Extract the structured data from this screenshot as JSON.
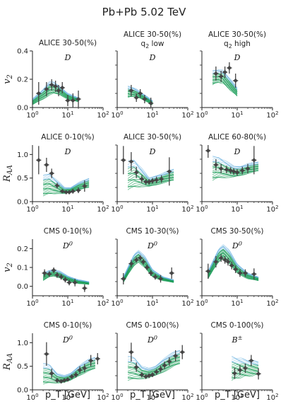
{
  "figure": {
    "title": "Pb+Pb 5.02 TeV",
    "xlabel": "p_T [GeV]",
    "row_ylabels": [
      "v_2",
      "R_AA",
      "v_2",
      "R_AA"
    ],
    "colors": {
      "data": "#444444",
      "model_green": "#1f9e5a",
      "model_blue": "#5aa9dc",
      "band_light": "#bfe3cf"
    }
  },
  "chart_data": [
    {
      "type": "line",
      "panel": [
        0,
        0
      ],
      "title": "ALICE 30-50(%)",
      "subtitle": "",
      "label": "D",
      "ylabel": "v_2",
      "xlog": true,
      "xlim": [
        1,
        100
      ],
      "ylim": [
        0,
        0.4
      ],
      "yticks": [
        0.0,
        0.2,
        0.4
      ],
      "model_band": {
        "x": [
          1,
          2,
          3,
          4,
          6,
          10,
          20
        ],
        "low": [
          0.02,
          0.06,
          0.09,
          0.1,
          0.09,
          0.06,
          0.04
        ],
        "high": [
          0.06,
          0.13,
          0.18,
          0.18,
          0.15,
          0.1,
          0.07
        ]
      },
      "data": [
        {
          "x": 1.5,
          "y": 0.1,
          "ey": 0.08
        },
        {
          "x": 2.5,
          "y": 0.13,
          "ey": 0.05
        },
        {
          "x": 3.5,
          "y": 0.16,
          "ey": 0.04
        },
        {
          "x": 4.5,
          "y": 0.15,
          "ey": 0.04
        },
        {
          "x": 5.5,
          "y": 0.12,
          "ey": 0.04
        },
        {
          "x": 7,
          "y": 0.14,
          "ey": 0.04
        },
        {
          "x": 10,
          "y": 0.05,
          "ey": 0.04
        },
        {
          "x": 14,
          "y": 0.05,
          "ey": 0.05
        },
        {
          "x": 20,
          "y": 0.06,
          "ey": 0.06
        }
      ]
    },
    {
      "type": "line",
      "panel": [
        0,
        1
      ],
      "title": "ALICE 30-50(%)",
      "subtitle": "q_2 low",
      "label": "D",
      "ylabel": "",
      "xlog": true,
      "xlim": [
        1,
        100
      ],
      "ylim": [
        0,
        0.4
      ],
      "model_band": {
        "x": [
          2,
          3,
          4,
          6,
          10
        ],
        "low": [
          0.07,
          0.08,
          0.07,
          0.05,
          0.02
        ],
        "high": [
          0.15,
          0.14,
          0.12,
          0.09,
          0.05
        ]
      },
      "data": [
        {
          "x": 2.5,
          "y": 0.12,
          "ey": 0.04
        },
        {
          "x": 3.5,
          "y": 0.07,
          "ey": 0.03
        },
        {
          "x": 4.5,
          "y": 0.1,
          "ey": 0.03
        },
        {
          "x": 6,
          "y": 0.06,
          "ey": 0.03
        },
        {
          "x": 9,
          "y": 0.03,
          "ey": 0.04
        }
      ]
    },
    {
      "type": "line",
      "panel": [
        0,
        2
      ],
      "title": "ALICE 30-50(%)",
      "subtitle": "q_2 high",
      "label": "D",
      "ylabel": "",
      "xlog": true,
      "xlim": [
        1,
        100
      ],
      "ylim": [
        0,
        0.4
      ],
      "model_band": {
        "x": [
          2,
          3,
          4,
          6,
          10
        ],
        "low": [
          0.16,
          0.18,
          0.17,
          0.13,
          0.08
        ],
        "high": [
          0.26,
          0.27,
          0.26,
          0.21,
          0.14
        ]
      },
      "data": [
        {
          "x": 2.5,
          "y": 0.24,
          "ey": 0.05
        },
        {
          "x": 3.5,
          "y": 0.22,
          "ey": 0.04
        },
        {
          "x": 4.5,
          "y": 0.25,
          "ey": 0.04
        },
        {
          "x": 6,
          "y": 0.28,
          "ey": 0.04
        },
        {
          "x": 9,
          "y": 0.19,
          "ey": 0.05
        }
      ]
    },
    {
      "type": "line",
      "panel": [
        1,
        0
      ],
      "title": "ALICE 0-10(%)",
      "subtitle": "",
      "label": "D",
      "ylabel": "R_AA",
      "xlog": true,
      "xlim": [
        1,
        100
      ],
      "ylim": [
        0,
        1.2
      ],
      "yticks": [
        0.0,
        0.5,
        1.0
      ],
      "model_band": {
        "x": [
          2,
          3,
          5,
          8,
          12,
          20,
          40
        ],
        "low": [
          0.12,
          0.16,
          0.18,
          0.17,
          0.2,
          0.25,
          0.3
        ],
        "high": [
          0.55,
          0.6,
          0.45,
          0.3,
          0.3,
          0.4,
          0.5
        ]
      },
      "data": [
        {
          "x": 1.5,
          "y": 0.88,
          "ey": 0.3
        },
        {
          "x": 2.5,
          "y": 0.78,
          "ey": 0.15
        },
        {
          "x": 3.5,
          "y": 0.6,
          "ey": 0.1
        },
        {
          "x": 5,
          "y": 0.34,
          "ey": 0.06
        },
        {
          "x": 7,
          "y": 0.22,
          "ey": 0.04
        },
        {
          "x": 9,
          "y": 0.2,
          "ey": 0.04
        },
        {
          "x": 11,
          "y": 0.2,
          "ey": 0.04
        },
        {
          "x": 14,
          "y": 0.22,
          "ey": 0.05
        },
        {
          "x": 20,
          "y": 0.24,
          "ey": 0.06
        },
        {
          "x": 30,
          "y": 0.33,
          "ey": 0.12
        }
      ]
    },
    {
      "type": "line",
      "panel": [
        1,
        1
      ],
      "title": "ALICE 30-50(%)",
      "subtitle": "",
      "label": "D",
      "ylabel": "",
      "xlog": true,
      "xlim": [
        1,
        100
      ],
      "ylim": [
        0,
        1.2
      ],
      "model_band": {
        "x": [
          2,
          3,
          5,
          8,
          12,
          20,
          40
        ],
        "low": [
          0.25,
          0.3,
          0.33,
          0.32,
          0.35,
          0.4,
          0.45
        ],
        "high": [
          0.85,
          0.9,
          0.7,
          0.5,
          0.55,
          0.6,
          0.7
        ]
      },
      "data": [
        {
          "x": 1.5,
          "y": 0.88,
          "ey": 0.3
        },
        {
          "x": 2.5,
          "y": 0.85,
          "ey": 0.2
        },
        {
          "x": 3.5,
          "y": 0.62,
          "ey": 0.12
        },
        {
          "x": 5,
          "y": 0.48,
          "ey": 0.08
        },
        {
          "x": 6.5,
          "y": 0.42,
          "ey": 0.06
        },
        {
          "x": 8,
          "y": 0.42,
          "ey": 0.06
        },
        {
          "x": 10,
          "y": 0.44,
          "ey": 0.06
        },
        {
          "x": 13,
          "y": 0.46,
          "ey": 0.07
        },
        {
          "x": 18,
          "y": 0.48,
          "ey": 0.08
        },
        {
          "x": 30,
          "y": 0.64,
          "ey": 0.3
        }
      ]
    },
    {
      "type": "line",
      "panel": [
        1,
        2
      ],
      "title": "ALICE 60-80(%)",
      "subtitle": "",
      "label": "D",
      "ylabel": "",
      "xlog": true,
      "xlim": [
        1,
        100
      ],
      "ylim": [
        0,
        1.2
      ],
      "model_band": {
        "x": [
          2,
          3,
          5,
          8,
          12,
          20,
          40
        ],
        "low": [
          0.45,
          0.5,
          0.52,
          0.52,
          0.55,
          0.6,
          0.65
        ],
        "high": [
          0.95,
          0.95,
          0.85,
          0.75,
          0.75,
          0.8,
          0.85
        ]
      },
      "data": [
        {
          "x": 1.5,
          "y": 1.08,
          "ey": 0.15
        },
        {
          "x": 2.5,
          "y": 0.78,
          "ey": 0.12
        },
        {
          "x": 3.5,
          "y": 0.7,
          "ey": 0.1
        },
        {
          "x": 5,
          "y": 0.68,
          "ey": 0.08
        },
        {
          "x": 6.5,
          "y": 0.66,
          "ey": 0.07
        },
        {
          "x": 8,
          "y": 0.64,
          "ey": 0.07
        },
        {
          "x": 10,
          "y": 0.62,
          "ey": 0.07
        },
        {
          "x": 14,
          "y": 0.66,
          "ey": 0.08
        },
        {
          "x": 20,
          "y": 0.7,
          "ey": 0.1
        },
        {
          "x": 30,
          "y": 0.88,
          "ey": 0.3
        }
      ]
    },
    {
      "type": "line",
      "panel": [
        2,
        0
      ],
      "title": "CMS 0-10(%)",
      "subtitle": "",
      "label": "D^0",
      "ylabel": "v_2",
      "xlog": true,
      "xlim": [
        1,
        100
      ],
      "ylim": [
        -0.05,
        0.25
      ],
      "yticks": [
        0.0,
        0.1,
        0.2
      ],
      "model_band": {
        "x": [
          2,
          3,
          4,
          6,
          10,
          20,
          40
        ],
        "low": [
          0.03,
          0.05,
          0.055,
          0.045,
          0.03,
          0.015,
          0.01
        ],
        "high": [
          0.07,
          0.085,
          0.09,
          0.08,
          0.055,
          0.035,
          0.025
        ]
      },
      "data": [
        {
          "x": 2.2,
          "y": 0.07,
          "ey": 0.02
        },
        {
          "x": 3,
          "y": 0.065,
          "ey": 0.015
        },
        {
          "x": 4,
          "y": 0.085,
          "ey": 0.015
        },
        {
          "x": 5,
          "y": 0.06,
          "ey": 0.015
        },
        {
          "x": 6.5,
          "y": 0.05,
          "ey": 0.015
        },
        {
          "x": 8.5,
          "y": 0.035,
          "ey": 0.015
        },
        {
          "x": 11,
          "y": 0.02,
          "ey": 0.015
        },
        {
          "x": 16,
          "y": 0.02,
          "ey": 0.02
        },
        {
          "x": 30,
          "y": -0.01,
          "ey": 0.02
        }
      ]
    },
    {
      "type": "line",
      "panel": [
        2,
        1
      ],
      "title": "CMS 10-30(%)",
      "subtitle": "",
      "label": "D^0",
      "ylabel": "",
      "xlog": true,
      "xlim": [
        1,
        100
      ],
      "ylim": [
        -0.05,
        0.25
      ],
      "model_band": {
        "x": [
          1.5,
          2,
          3,
          4,
          6,
          10,
          20,
          40
        ],
        "low": [
          0.02,
          0.06,
          0.11,
          0.13,
          0.1,
          0.05,
          0.03,
          0.02
        ],
        "high": [
          0.05,
          0.1,
          0.17,
          0.19,
          0.16,
          0.09,
          0.05,
          0.035
        ]
      },
      "data": [
        {
          "x": 1.5,
          "y": 0.04,
          "ey": 0.03
        },
        {
          "x": 2.5,
          "y": 0.12,
          "ey": 0.02
        },
        {
          "x": 3.5,
          "y": 0.14,
          "ey": 0.015
        },
        {
          "x": 4.5,
          "y": 0.15,
          "ey": 0.015
        },
        {
          "x": 5.5,
          "y": 0.13,
          "ey": 0.015
        },
        {
          "x": 7,
          "y": 0.1,
          "ey": 0.015
        },
        {
          "x": 9,
          "y": 0.07,
          "ey": 0.015
        },
        {
          "x": 12,
          "y": 0.05,
          "ey": 0.015
        },
        {
          "x": 17,
          "y": 0.04,
          "ey": 0.02
        },
        {
          "x": 35,
          "y": 0.07,
          "ey": 0.03
        }
      ]
    },
    {
      "type": "line",
      "panel": [
        2,
        2
      ],
      "title": "CMS 30-50(%)",
      "subtitle": "",
      "label": "D^0",
      "ylabel": "",
      "xlog": true,
      "xlim": [
        1,
        100
      ],
      "ylim": [
        -0.05,
        0.25
      ],
      "model_band": {
        "x": [
          1.5,
          2,
          3,
          4,
          6,
          10,
          20,
          40
        ],
        "low": [
          0.04,
          0.08,
          0.13,
          0.15,
          0.12,
          0.07,
          0.04,
          0.03
        ],
        "high": [
          0.08,
          0.13,
          0.2,
          0.22,
          0.19,
          0.12,
          0.07,
          0.05
        ]
      },
      "data": [
        {
          "x": 1.5,
          "y": 0.08,
          "ey": 0.04
        },
        {
          "x": 2.5,
          "y": 0.13,
          "ey": 0.03
        },
        {
          "x": 3.5,
          "y": 0.15,
          "ey": 0.02
        },
        {
          "x": 4.5,
          "y": 0.14,
          "ey": 0.02
        },
        {
          "x": 5.5,
          "y": 0.13,
          "ey": 0.02
        },
        {
          "x": 7,
          "y": 0.11,
          "ey": 0.02
        },
        {
          "x": 9,
          "y": 0.09,
          "ey": 0.02
        },
        {
          "x": 12,
          "y": 0.07,
          "ey": 0.02
        },
        {
          "x": 17,
          "y": 0.07,
          "ey": 0.02
        },
        {
          "x": 30,
          "y": 0.065,
          "ey": 0.03
        }
      ]
    },
    {
      "type": "line",
      "panel": [
        3,
        0
      ],
      "title": "CMS 0-10(%)",
      "subtitle": "",
      "label": "D^0",
      "ylabel": "R_AA",
      "xlog": true,
      "xlim": [
        1,
        100
      ],
      "ylim": [
        0,
        1.2
      ],
      "yticks": [
        0.0,
        0.5,
        1.0
      ],
      "model_band": {
        "x": [
          2,
          3,
          5,
          8,
          12,
          20,
          40,
          60
        ],
        "low": [
          0.12,
          0.14,
          0.15,
          0.16,
          0.2,
          0.3,
          0.4,
          0.45
        ],
        "high": [
          0.55,
          0.55,
          0.35,
          0.3,
          0.35,
          0.5,
          0.65,
          0.7
        ]
      },
      "data": [
        {
          "x": 2.5,
          "y": 0.76,
          "ey": 0.25
        },
        {
          "x": 3.5,
          "y": 0.35,
          "ey": 0.1
        },
        {
          "x": 5,
          "y": 0.2,
          "ey": 0.05
        },
        {
          "x": 6.5,
          "y": 0.18,
          "ey": 0.04
        },
        {
          "x": 8,
          "y": 0.2,
          "ey": 0.04
        },
        {
          "x": 10,
          "y": 0.22,
          "ey": 0.04
        },
        {
          "x": 13,
          "y": 0.28,
          "ey": 0.05
        },
        {
          "x": 17,
          "y": 0.32,
          "ey": 0.06
        },
        {
          "x": 22,
          "y": 0.42,
          "ey": 0.08
        },
        {
          "x": 30,
          "y": 0.46,
          "ey": 0.09
        },
        {
          "x": 45,
          "y": 0.62,
          "ey": 0.12
        },
        {
          "x": 70,
          "y": 0.66,
          "ey": 0.12
        }
      ]
    },
    {
      "type": "line",
      "panel": [
        3,
        1
      ],
      "title": "CMS 0-100(%)",
      "subtitle": "",
      "label": "D^0",
      "ylabel": "",
      "xlog": true,
      "xlim": [
        1,
        100
      ],
      "ylim": [
        0,
        1.2
      ],
      "model_band": {
        "x": [
          2,
          3,
          5,
          8,
          12,
          20,
          40,
          60
        ],
        "low": [
          0.2,
          0.22,
          0.24,
          0.26,
          0.3,
          0.38,
          0.5,
          0.55
        ],
        "high": [
          0.7,
          0.7,
          0.5,
          0.45,
          0.5,
          0.65,
          0.8,
          0.85
        ]
      },
      "data": [
        {
          "x": 2.5,
          "y": 0.8,
          "ey": 0.2
        },
        {
          "x": 3.5,
          "y": 0.48,
          "ey": 0.1
        },
        {
          "x": 5,
          "y": 0.32,
          "ey": 0.06
        },
        {
          "x": 6.5,
          "y": 0.28,
          "ey": 0.05
        },
        {
          "x": 8,
          "y": 0.3,
          "ey": 0.05
        },
        {
          "x": 10,
          "y": 0.32,
          "ey": 0.05
        },
        {
          "x": 13,
          "y": 0.38,
          "ey": 0.06
        },
        {
          "x": 17,
          "y": 0.44,
          "ey": 0.07
        },
        {
          "x": 22,
          "y": 0.52,
          "ey": 0.08
        },
        {
          "x": 30,
          "y": 0.6,
          "ey": 0.09
        },
        {
          "x": 45,
          "y": 0.72,
          "ey": 0.12
        },
        {
          "x": 70,
          "y": 0.8,
          "ey": 0.15
        }
      ]
    },
    {
      "type": "line",
      "panel": [
        3,
        2
      ],
      "title": "CMS 0-100(%)",
      "subtitle": "",
      "label": "B^±",
      "ylabel": "",
      "xlog": true,
      "xlim": [
        1,
        100
      ],
      "ylim": [
        0,
        1.2
      ],
      "model_band": {
        "x": [
          7,
          10,
          15,
          25,
          40
        ],
        "low": [
          0.2,
          0.25,
          0.28,
          0.3,
          0.32
        ],
        "high": [
          0.7,
          0.68,
          0.65,
          0.62,
          0.6
        ]
      },
      "data": [
        {
          "x": 8.5,
          "y": 0.35,
          "ey": 0.12
        },
        {
          "x": 12,
          "y": 0.42,
          "ey": 0.1
        },
        {
          "x": 17,
          "y": 0.46,
          "ey": 0.1
        },
        {
          "x": 25,
          "y": 0.62,
          "ey": 0.12
        },
        {
          "x": 40,
          "y": 0.34,
          "ey": 0.12
        }
      ]
    }
  ]
}
